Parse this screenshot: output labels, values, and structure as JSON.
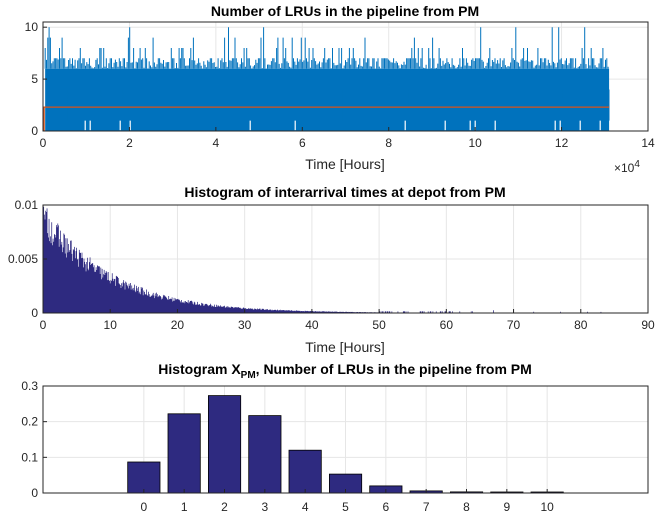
{
  "chart_data": [
    {
      "type": "line",
      "title": "Number of LRUs in the pipeline from PM",
      "xlabel": "Time [Hours]",
      "ylabel": "",
      "x_exponent_label": "×10",
      "x_exponent": "4",
      "xlim": [
        0,
        14
      ],
      "ylim": [
        0,
        10.5
      ],
      "xticks": [
        "0",
        "2",
        "4",
        "6",
        "8",
        "10",
        "12",
        "14"
      ],
      "yticks": [
        "0",
        "5",
        "10"
      ],
      "grid": true,
      "series": [
        {
          "color": "#0072BD",
          "x_range": [
            0.05,
            13.1
          ],
          "typical_low": 4,
          "typical_high": 6,
          "max": 10,
          "min": 1
        },
        {
          "color": "#D95319",
          "x_range": [
            0,
            13.1
          ],
          "mean_value": 2.3
        }
      ]
    },
    {
      "type": "bar",
      "title": "Histogram of interarrival times at depot from PM",
      "xlabel": "Time [Hours]",
      "ylabel": "",
      "xlim": [
        0,
        90
      ],
      "ylim": [
        0,
        0.01
      ],
      "xticks": [
        "0",
        "10",
        "20",
        "30",
        "40",
        "50",
        "60",
        "70",
        "80",
        "90"
      ],
      "yticks": [
        "0",
        "0.005",
        "0.01"
      ],
      "grid": true,
      "color": "#2E2A80",
      "peak_density": 0.0088,
      "decay_rate": 0.1
    },
    {
      "type": "bar",
      "title": "Histogram X",
      "title_subscript": "PM",
      "title_rest": ", Number of LRUs in the pipeline from PM",
      "xlabel": "",
      "ylabel": "",
      "xlim": [
        -2.5,
        12.5
      ],
      "ylim": [
        0,
        0.3
      ],
      "categories": [
        "0",
        "1",
        "2",
        "3",
        "4",
        "5",
        "6",
        "7",
        "8",
        "9",
        "10"
      ],
      "values": [
        0.087,
        0.222,
        0.273,
        0.217,
        0.12,
        0.053,
        0.02,
        0.006,
        0.003,
        0.002,
        0.002
      ],
      "yticks": [
        "0",
        "0.1",
        "0.2",
        "0.3"
      ],
      "grid": true,
      "color": "#2E2A80"
    }
  ]
}
